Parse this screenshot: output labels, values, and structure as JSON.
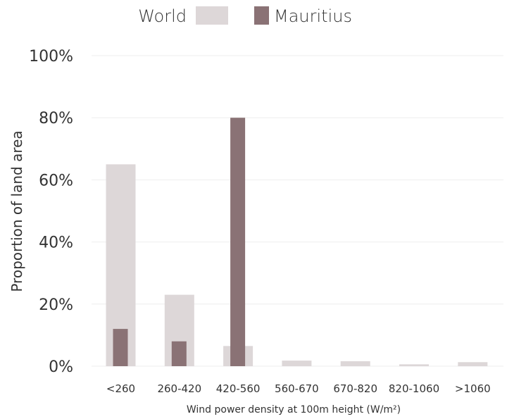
{
  "chart_data": {
    "type": "bar",
    "title": "",
    "xlabel": "Wind power density at 100m height (W/m²)",
    "ylabel": "Proportion of land area",
    "categories": [
      "<260",
      "260-420",
      "420-560",
      "560-670",
      "670-820",
      "820-1060",
      ">1060"
    ],
    "ylim": [
      0,
      100
    ],
    "yticks": [
      "0%",
      "20%",
      "40%",
      "60%",
      "80%",
      "100%"
    ],
    "grid": true,
    "legend_position": "top",
    "series": [
      {
        "name": "World",
        "values": [
          65,
          23,
          6.5,
          1.8,
          1.6,
          0.6,
          1.3
        ],
        "color": "#ddd7d8"
      },
      {
        "name": "Mauritius",
        "values": [
          12,
          8,
          80,
          0,
          0,
          0,
          0
        ],
        "color": "#8a7275"
      }
    ]
  }
}
